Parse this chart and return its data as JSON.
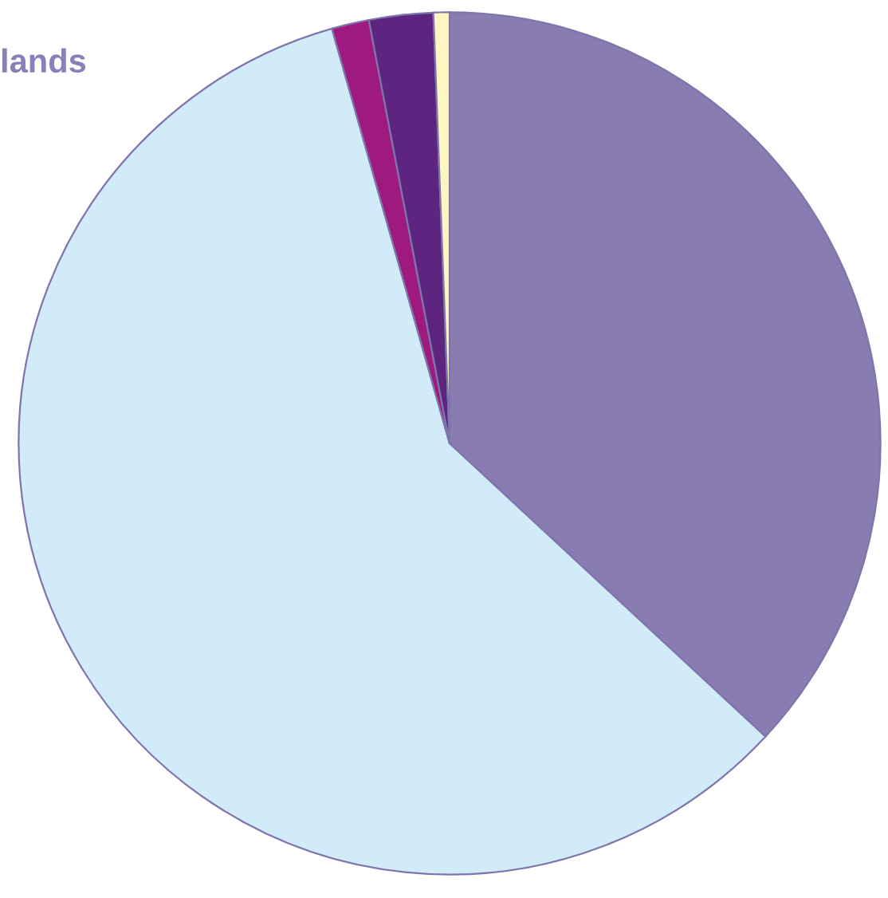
{
  "chart_data": {
    "type": "pie",
    "title": "lands",
    "categories": [
      null,
      null,
      null,
      null,
      null
    ],
    "values": [
      36.9,
      58.7,
      1.4,
      2.4,
      0.6
    ],
    "colors": [
      "#897cb0",
      "#d1ebf9",
      "#9e1a7e",
      "#5d2580",
      "#fdf6c3"
    ]
  }
}
